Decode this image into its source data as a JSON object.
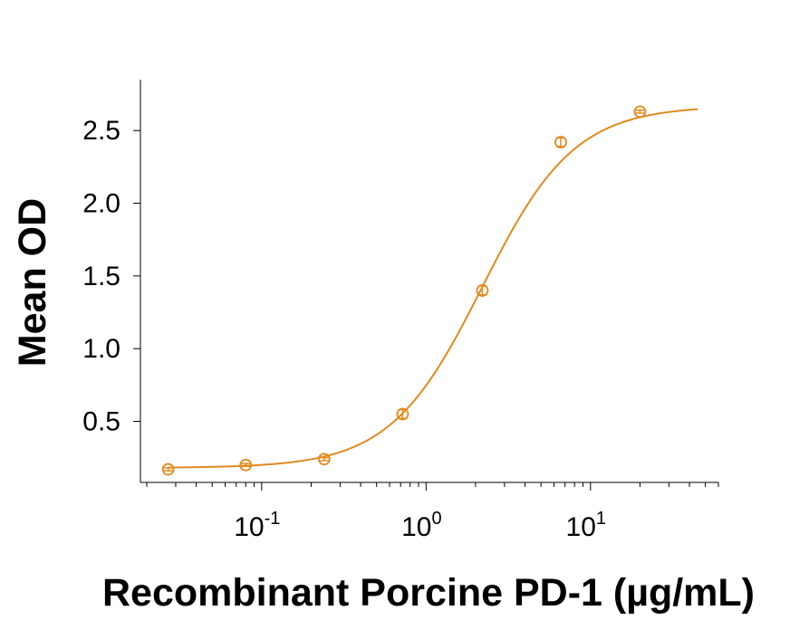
{
  "chart_data": {
    "type": "scatter",
    "title": "",
    "xlabel": "Recombinant Porcine PD-1 (µg/mL)",
    "ylabel": "Mean OD",
    "xscale": "log",
    "xlim": [
      0.02,
      60
    ],
    "ylim": [
      0.08,
      2.85
    ],
    "yticks": [
      {
        "value": 0.5,
        "label": "0.5"
      },
      {
        "value": 1.0,
        "label": "1.0"
      },
      {
        "value": 1.5,
        "label": "1.5"
      },
      {
        "value": 2.0,
        "label": "2.0"
      },
      {
        "value": 2.5,
        "label": "2.5"
      }
    ],
    "xticks": [
      {
        "value": 0.1,
        "base": "10",
        "exp": "-1"
      },
      {
        "value": 1,
        "base": "10",
        "exp": "0"
      },
      {
        "value": 10,
        "base": "10",
        "exp": "1"
      }
    ],
    "grid": false,
    "color": "#e08a1e",
    "series": [
      {
        "x": [
          0.027,
          0.08,
          0.24,
          0.72,
          2.2,
          6.6,
          20
        ],
        "y": [
          0.17,
          0.2,
          0.24,
          0.55,
          1.4,
          2.42,
          2.63
        ],
        "err": [
          0.01,
          0.01,
          0.01,
          0.03,
          0.03,
          0.03,
          0.01
        ]
      }
    ],
    "fit": {
      "model": "4PL",
      "bottom": 0.18,
      "top": 2.67,
      "ec50": 2.2,
      "hill": 1.55,
      "x_range": [
        0.027,
        45
      ]
    }
  }
}
